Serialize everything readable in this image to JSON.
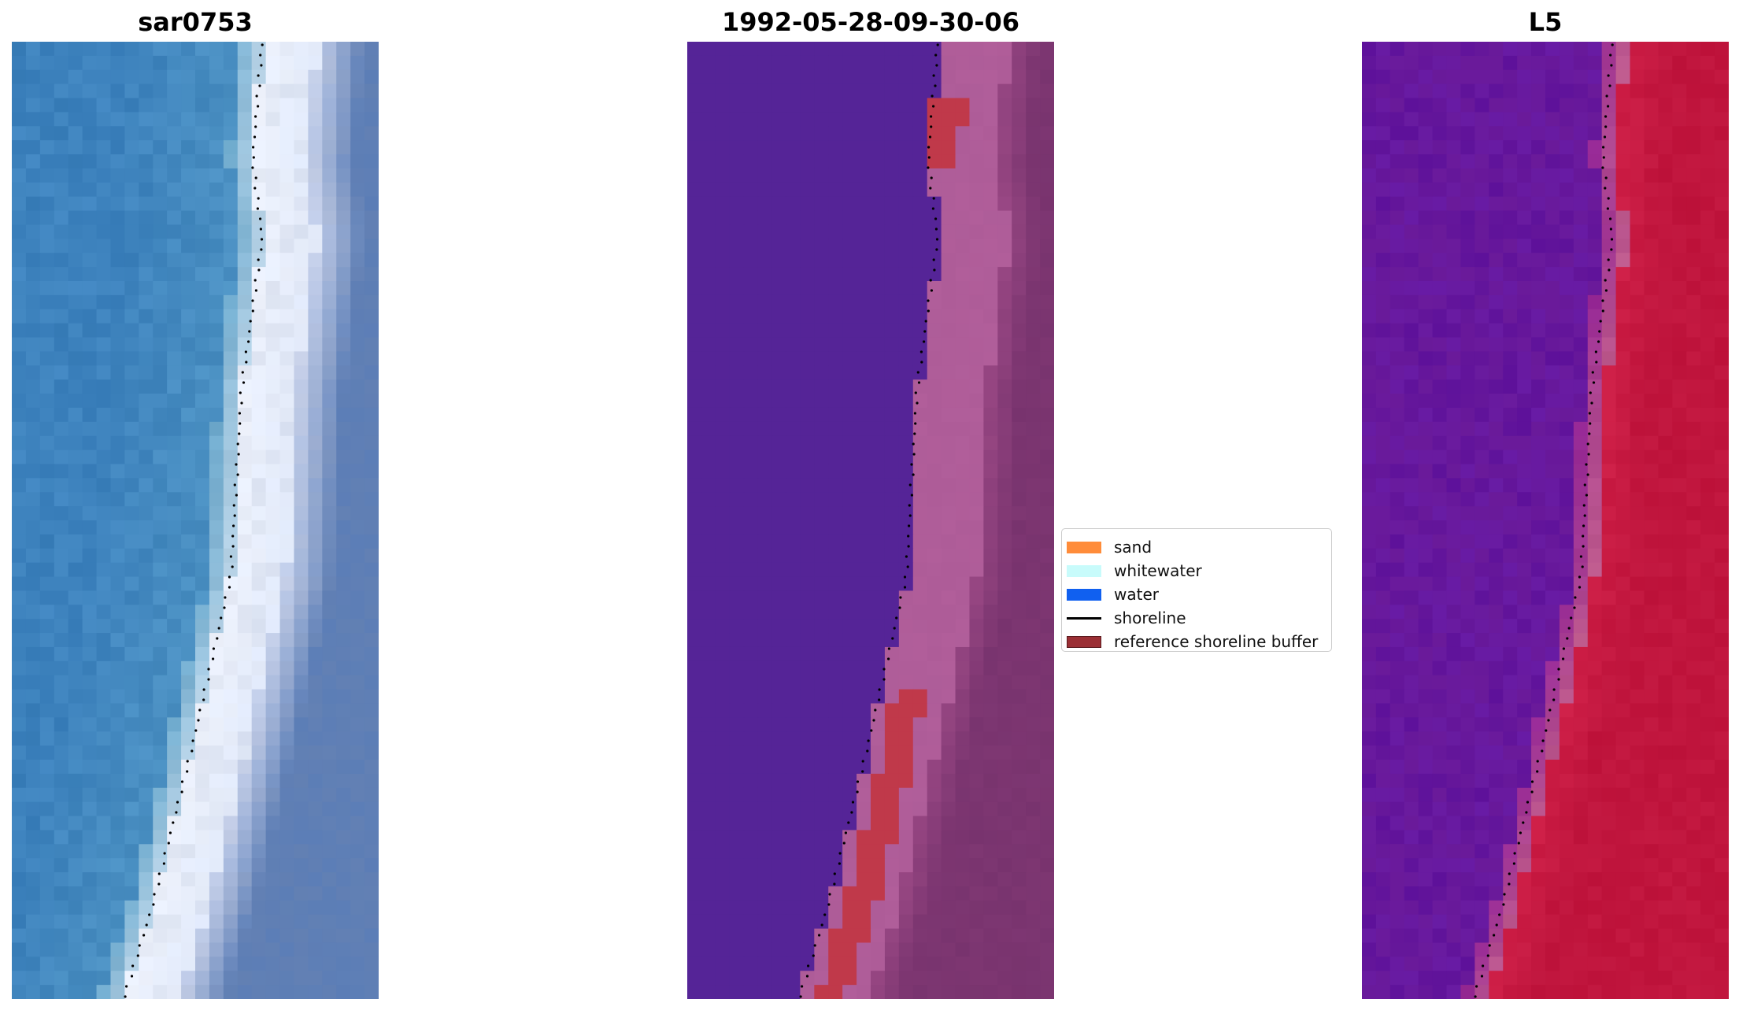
{
  "panels": [
    {
      "title": "sar0753",
      "style": "rgb"
    },
    {
      "title": "1992-05-28-09-30-06",
      "style": "class"
    },
    {
      "title": "L5",
      "style": "index"
    }
  ],
  "legend": {
    "items": [
      {
        "label": "sand",
        "color": "#ff8c3a",
        "kind": "patch"
      },
      {
        "label": "whitewater",
        "color": "#c8fbfb",
        "kind": "patch"
      },
      {
        "label": "water",
        "color": "#1060f0",
        "kind": "patch"
      },
      {
        "label": "shoreline",
        "color": "#000000",
        "kind": "line"
      },
      {
        "label": "reference shoreline buffer",
        "color": "#9b2f35",
        "kind": "patch"
      }
    ]
  },
  "colors": {
    "ocean": "#3d82bd",
    "surf": "#eef2fb",
    "land_blue": "#5f7fb5",
    "water_class": "#552497",
    "buffer_pink": "#b15e9a",
    "land_class": "#7b3570",
    "whitewater_red": "#c0394a",
    "index_water": "#6a1a9a",
    "index_land": "#c0153d",
    "shoreline_dots": "#000000"
  }
}
